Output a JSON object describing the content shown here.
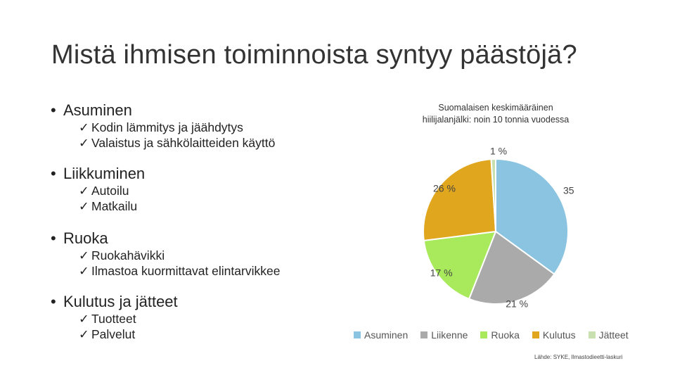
{
  "slide": {
    "title": "Mistä ihmisen toiminnoista syntyy päästöjä?"
  },
  "bullets": [
    {
      "label": "Asuminen",
      "items": [
        "Kodin lämmitys ja jäähdytys",
        "Valaistus ja sähkölaitteiden käyttö"
      ]
    },
    {
      "label": "Liikkuminen",
      "items": [
        "Autoilu",
        "Matkailu"
      ]
    },
    {
      "label": "Ruoka",
      "items": [
        "Ruokahävikki",
        "Ilmastoa kuormittavat elintarvikkee"
      ]
    },
    {
      "label": "Kulutus ja jätteet",
      "items": [
        "Tuotteet",
        "Palvelut"
      ]
    }
  ],
  "chart_data": {
    "type": "pie",
    "title": "Suomalaisen keskimääräinen hiilijalanjälki: noin 10 tonnia vuodessa",
    "categories": [
      "Asuminen",
      "Liikenne",
      "Ruoka",
      "Kulutus",
      "Jätteet"
    ],
    "values": [
      35,
      21,
      17,
      26,
      1
    ],
    "labels": [
      "35 %",
      "21 %",
      "17 %",
      "26 %",
      "1 %"
    ],
    "colors": [
      "#8bc4e0",
      "#aaaaaa",
      "#a8ea5c",
      "#e0a61e",
      "#c8e0b0"
    ],
    "legend": "bottom"
  },
  "source": "Lähde: SYKE, Ilmastodieetti-laskuri"
}
